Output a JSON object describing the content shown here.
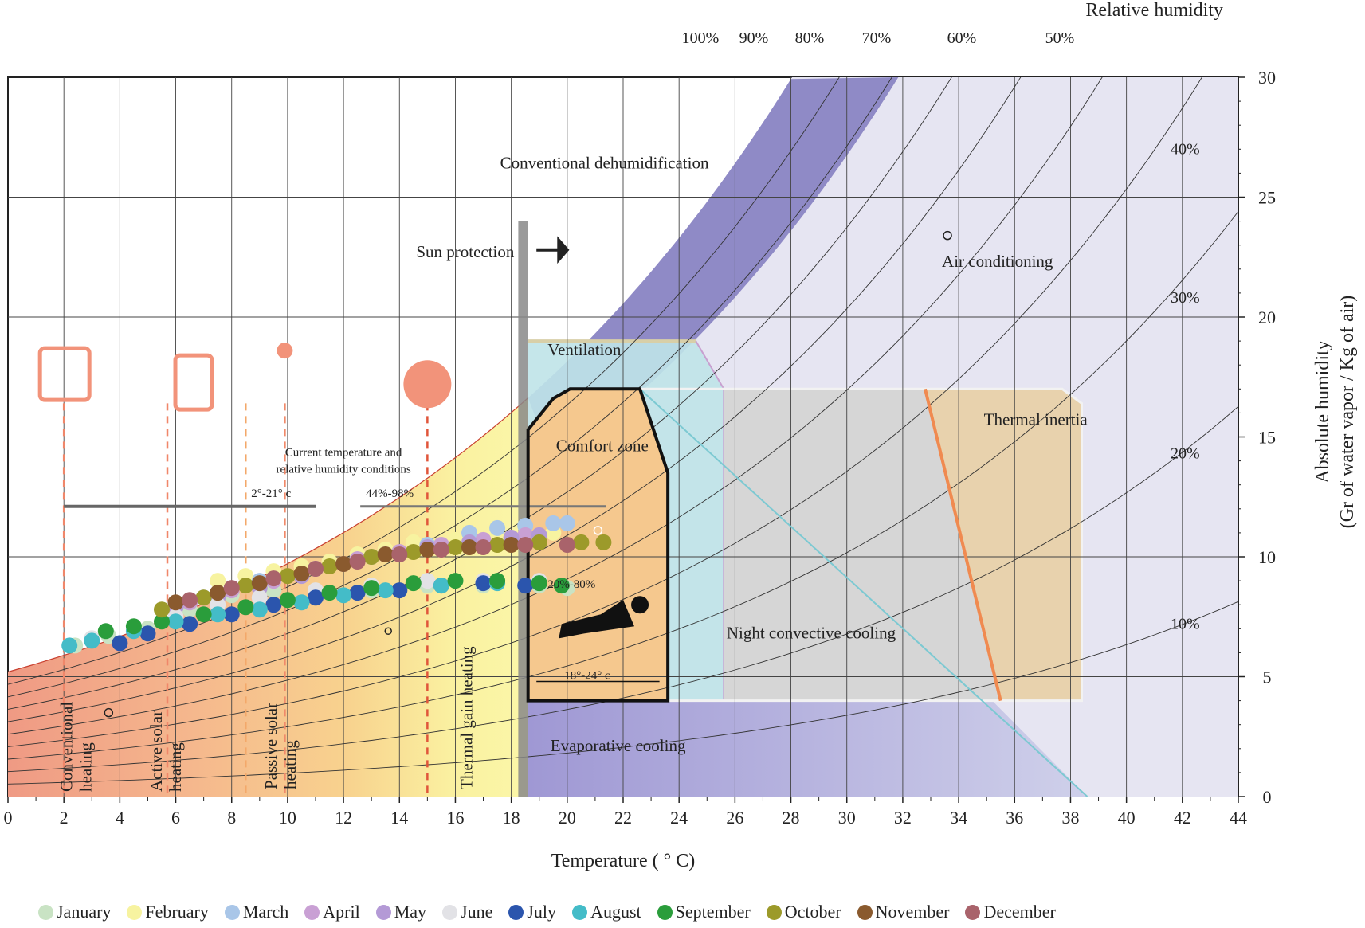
{
  "chart_data": {
    "type": "scatter",
    "title": "",
    "xlabel": "Temperature (    ° C)",
    "ylabel": "Absolute humidity\n(Gr of water vapor / Kg of air)",
    "rh_title": "Relative humidity",
    "xlim": [
      0,
      44
    ],
    "ylim": [
      0,
      30
    ],
    "x_ticks": [
      "0",
      "2",
      "4",
      "6",
      "8",
      "10",
      "12",
      "14",
      "16",
      "18",
      "20",
      "22",
      "24",
      "26",
      "28",
      "30",
      "32",
      "34",
      "36",
      "38",
      "40",
      "42",
      "44"
    ],
    "y_ticks": [
      "0",
      "5",
      "10",
      "15",
      "20",
      "25",
      "30"
    ],
    "rh_lines": [
      100,
      90,
      80,
      70,
      60,
      50,
      40,
      30,
      20,
      10
    ],
    "rh_top_labels": [
      "100%",
      "90%",
      "80%",
      "70%",
      "60%",
      "50%"
    ],
    "rh_right_labels": [
      "40%",
      "30%",
      "20%",
      "10%"
    ],
    "zones": {
      "dehumidification": "Conventional dehumidification",
      "sun_protection": "Sun protection",
      "air_conditioning": "Air conditioning",
      "ventilation": "Ventilation",
      "comfort_zone": "Comfort zone",
      "thermal_inertia": "Thermal inertia",
      "night_cooling": "Night convective cooling",
      "evaporative_cooling": "Evaporative cooling",
      "conventional_heating": "Conventional heating",
      "active_solar_heating": "Active solar heating",
      "passive_solar_heating": "Passive solar heating",
      "thermal_gain_heating": "Thermal gain heating"
    },
    "annotations": {
      "current_conditions_line1": "Current temperature and",
      "current_conditions_line2": "relative humidity conditions",
      "temp_range": "2°-21° c",
      "rh_range": "44%-98%",
      "comfort_rh": "20%-80%",
      "comfort_temp": "18°-24° c"
    },
    "series": [
      {
        "name": "January",
        "color": "#c9e3c4",
        "points": [
          [
            2.4,
            6.3
          ],
          [
            3.6,
            6.7
          ],
          [
            5.0,
            7.0
          ],
          [
            6.5,
            7.8
          ],
          [
            8.0,
            8.4
          ],
          [
            9.5,
            8.6
          ],
          [
            11.0,
            8.4
          ],
          [
            13.0,
            8.6
          ],
          [
            15.0,
            8.8
          ],
          [
            17.0,
            8.8
          ],
          [
            19.0,
            8.8
          ],
          [
            20.0,
            8.7
          ]
        ]
      },
      {
        "name": "February",
        "color": "#f7f3a0",
        "points": [
          [
            7.5,
            9.0
          ],
          [
            8.5,
            9.2
          ],
          [
            9.5,
            9.4
          ],
          [
            10.5,
            9.6
          ],
          [
            11.5,
            9.8
          ],
          [
            12.5,
            10.1
          ],
          [
            13.5,
            10.3
          ],
          [
            14.5,
            10.6
          ],
          [
            16.0,
            10.7
          ],
          [
            17.5,
            10.8
          ],
          [
            18.5,
            10.9
          ],
          [
            19.5,
            11.0
          ]
        ]
      },
      {
        "name": "March",
        "color": "#a9c6e8",
        "points": [
          [
            7.0,
            8.3
          ],
          [
            9.0,
            9.0
          ],
          [
            11.0,
            9.5
          ],
          [
            13.0,
            10.0
          ],
          [
            15.0,
            10.5
          ],
          [
            16.5,
            11.0
          ],
          [
            17.5,
            11.2
          ],
          [
            18.5,
            11.3
          ],
          [
            19.5,
            11.4
          ],
          [
            20.0,
            11.4
          ]
        ]
      },
      {
        "name": "April",
        "color": "#c9a0d4",
        "points": [
          [
            6.5,
            8.1
          ],
          [
            8.0,
            8.6
          ],
          [
            9.5,
            9.0
          ],
          [
            11.0,
            9.5
          ],
          [
            12.5,
            9.9
          ],
          [
            14.0,
            10.2
          ],
          [
            15.5,
            10.5
          ],
          [
            17.0,
            10.7
          ],
          [
            18.5,
            10.9
          ]
        ]
      },
      {
        "name": "May",
        "color": "#b49ad6",
        "points": [
          [
            6.0,
            7.9
          ],
          [
            7.5,
            8.3
          ],
          [
            9.0,
            8.7
          ],
          [
            10.5,
            9.2
          ],
          [
            12.0,
            9.7
          ],
          [
            13.5,
            10.1
          ],
          [
            15.0,
            10.4
          ],
          [
            16.5,
            10.6
          ],
          [
            18.0,
            10.8
          ],
          [
            19.0,
            10.9
          ]
        ]
      },
      {
        "name": "June",
        "color": "#e2e2e6",
        "points": [
          [
            3.0,
            6.6
          ],
          [
            4.5,
            7.0
          ],
          [
            6.0,
            7.5
          ],
          [
            7.5,
            8.0
          ],
          [
            9.0,
            8.3
          ],
          [
            11.0,
            8.6
          ],
          [
            13.0,
            8.8
          ],
          [
            15.0,
            9.0
          ],
          [
            17.0,
            9.0
          ],
          [
            19.0,
            9.0
          ]
        ]
      },
      {
        "name": "July",
        "color": "#2b55ad",
        "points": [
          [
            4.0,
            6.4
          ],
          [
            5.0,
            6.8
          ],
          [
            6.5,
            7.2
          ],
          [
            8.0,
            7.6
          ],
          [
            9.5,
            8.0
          ],
          [
            11.0,
            8.3
          ],
          [
            12.5,
            8.5
          ],
          [
            14.0,
            8.6
          ],
          [
            15.5,
            8.8
          ],
          [
            17.0,
            8.9
          ],
          [
            18.5,
            8.8
          ]
        ]
      },
      {
        "name": "August",
        "color": "#44bcc8",
        "points": [
          [
            2.2,
            6.3
          ],
          [
            3.0,
            6.5
          ],
          [
            4.5,
            6.9
          ],
          [
            6.0,
            7.3
          ],
          [
            7.5,
            7.6
          ],
          [
            9.0,
            7.8
          ],
          [
            10.5,
            8.1
          ],
          [
            12.0,
            8.4
          ],
          [
            13.5,
            8.6
          ],
          [
            15.5,
            8.8
          ],
          [
            17.5,
            8.9
          ],
          [
            19.0,
            8.9
          ]
        ]
      },
      {
        "name": "September",
        "color": "#2a9d3b",
        "points": [
          [
            3.5,
            6.9
          ],
          [
            4.5,
            7.1
          ],
          [
            5.5,
            7.3
          ],
          [
            7.0,
            7.6
          ],
          [
            8.5,
            7.9
          ],
          [
            10.0,
            8.2
          ],
          [
            11.5,
            8.5
          ],
          [
            13.0,
            8.7
          ],
          [
            14.5,
            8.9
          ],
          [
            16.0,
            9.0
          ],
          [
            17.5,
            9.0
          ],
          [
            19.0,
            8.9
          ],
          [
            19.8,
            8.8
          ]
        ]
      },
      {
        "name": "October",
        "color": "#9c9a2a",
        "points": [
          [
            5.5,
            7.8
          ],
          [
            7.0,
            8.3
          ],
          [
            8.5,
            8.8
          ],
          [
            10.0,
            9.2
          ],
          [
            11.5,
            9.6
          ],
          [
            13.0,
            10.0
          ],
          [
            14.5,
            10.2
          ],
          [
            16.0,
            10.4
          ],
          [
            17.5,
            10.5
          ],
          [
            19.0,
            10.6
          ],
          [
            20.5,
            10.6
          ],
          [
            21.3,
            10.6
          ]
        ]
      },
      {
        "name": "November",
        "color": "#8a5a2e",
        "points": [
          [
            6.0,
            8.1
          ],
          [
            7.5,
            8.5
          ],
          [
            9.0,
            8.9
          ],
          [
            10.5,
            9.3
          ],
          [
            12.0,
            9.7
          ],
          [
            13.5,
            10.1
          ],
          [
            15.0,
            10.3
          ],
          [
            16.5,
            10.4
          ],
          [
            18.0,
            10.5
          ]
        ]
      },
      {
        "name": "December",
        "color": "#a9636b",
        "points": [
          [
            6.5,
            8.2
          ],
          [
            8.0,
            8.7
          ],
          [
            9.5,
            9.1
          ],
          [
            11.0,
            9.5
          ],
          [
            12.5,
            9.8
          ],
          [
            14.0,
            10.1
          ],
          [
            15.5,
            10.3
          ],
          [
            17.0,
            10.4
          ],
          [
            18.5,
            10.5
          ],
          [
            20.0,
            10.5
          ]
        ]
      }
    ],
    "legend_position": "bottom",
    "grid": true
  }
}
